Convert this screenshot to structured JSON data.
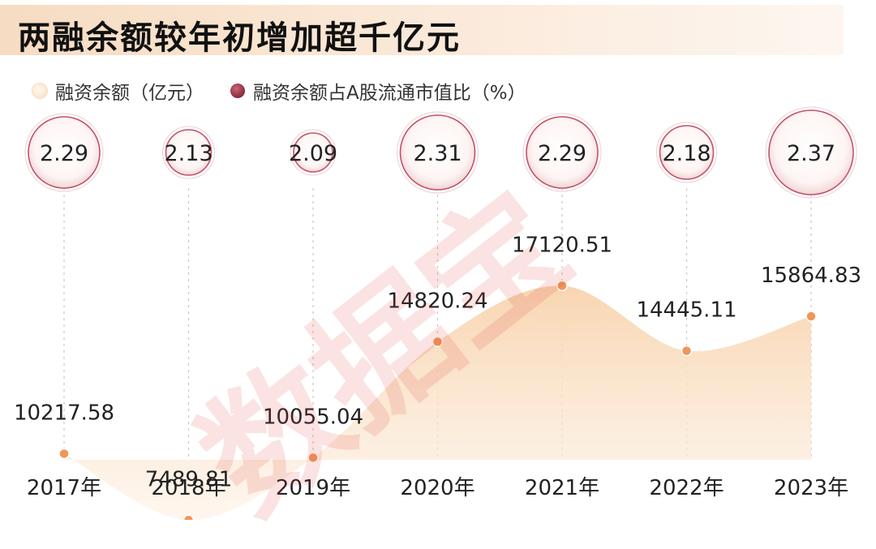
{
  "title": "两融余额较年初增加超千亿元",
  "legend": {
    "area_label": "融资余额（亿元）",
    "ratio_label": "融资余额占A股流通市值比（%）"
  },
  "watermark": "数据宝",
  "colors": {
    "area_fill": "#f9dcbc",
    "point": "#ee9758",
    "ratio_ring": "#c2536a",
    "text": "#222222"
  },
  "chart_data": {
    "type": "area",
    "categories": [
      "2017年",
      "2018年",
      "2019年",
      "2020年",
      "2021年",
      "2022年",
      "2023年"
    ],
    "series": [
      {
        "name": "融资余额（亿元）",
        "values": [
          10217.58,
          7489.81,
          10055.04,
          14820.24,
          17120.51,
          14445.11,
          15864.83
        ]
      },
      {
        "name": "融资余额占A股流通市值比（%）",
        "values": [
          2.29,
          2.13,
          2.09,
          2.31,
          2.29,
          2.18,
          2.37
        ]
      }
    ],
    "value_labels": [
      "10217.58",
      "7489.81",
      "10055.04",
      "14820.24",
      "17120.51",
      "14445.11",
      "15864.83"
    ],
    "ratio_labels": [
      "2.29",
      "2.13",
      "2.09",
      "2.31",
      "2.29",
      "2.18",
      "2.37"
    ],
    "legend_position": "top-left",
    "grid": false
  }
}
